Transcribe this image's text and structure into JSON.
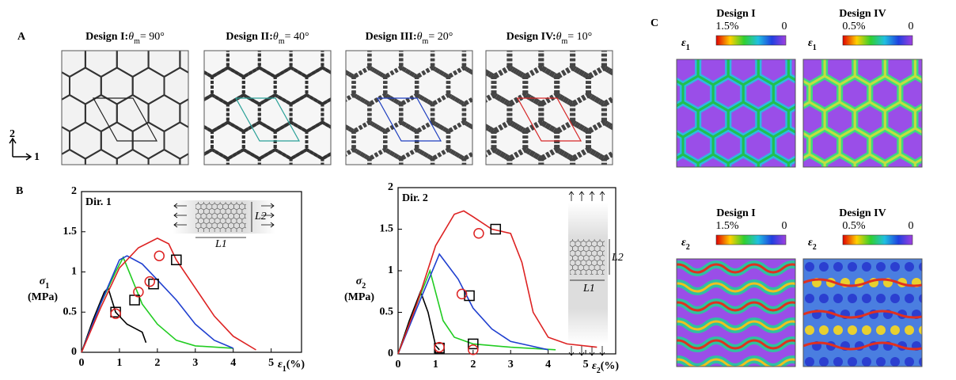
{
  "panel_labels": [
    "A",
    "B",
    "C"
  ],
  "panel_a": {
    "axis_labels": [
      "2",
      "1"
    ],
    "designs": [
      {
        "name": "Design I:",
        "symbol": "θ",
        "sub": "m",
        "equation": "= 90°",
        "cell_color": "#222222"
      },
      {
        "name": "Design II:",
        "symbol": "θ",
        "sub": "m",
        "equation": "= 40°",
        "cell_color": "#2aa198"
      },
      {
        "name": "Design III:",
        "symbol": "θ",
        "sub": "m",
        "equation": "= 20°",
        "cell_color": "#1f3fbf"
      },
      {
        "name": "Design IV:",
        "symbol": "θ",
        "sub": "m",
        "equation": "= 10°",
        "cell_color": "#d62728"
      }
    ]
  },
  "chart_data": [
    {
      "type": "line",
      "annotation": "Dir. 1",
      "x_label": {
        "symbol": "ε",
        "sub": "1",
        "unit": "(%)"
      },
      "y_label": {
        "symbol": "σ",
        "sub": "1",
        "unit": "(MPa)"
      },
      "inset_labels": {
        "l1": "L1",
        "l2": "L2"
      },
      "xlim": [
        0,
        5.8
      ],
      "ylim": [
        0,
        2
      ],
      "xticks": [
        0,
        1,
        2,
        3,
        4,
        5
      ],
      "yticks": [
        0,
        0.5,
        1,
        1.5,
        2
      ],
      "series": [
        {
          "color": "#000000",
          "x": [
            0,
            0.3,
            0.6,
            0.7,
            0.9,
            1.2,
            1.6,
            1.7
          ],
          "values": [
            0,
            0.4,
            0.75,
            0.8,
            0.5,
            0.35,
            0.25,
            0.12
          ]
        },
        {
          "color": "#22cc22",
          "x": [
            0,
            0.5,
            0.9,
            1.1,
            1.3,
            1.6,
            2,
            2.5,
            3,
            4
          ],
          "values": [
            0,
            0.6,
            1.0,
            1.18,
            0.95,
            0.6,
            0.35,
            0.15,
            0.08,
            0.05
          ]
        },
        {
          "color": "#1f3fcf",
          "x": [
            0,
            0.5,
            1,
            1.2,
            1.6,
            2,
            2.5,
            3,
            3.5,
            4
          ],
          "values": [
            0,
            0.6,
            1.15,
            1.2,
            1.1,
            0.9,
            0.65,
            0.35,
            0.15,
            0.05
          ]
        },
        {
          "color": "#dd2222",
          "x": [
            0,
            0.5,
            1,
            1.5,
            2,
            2.3,
            2.5,
            3,
            3.5,
            4,
            4.6
          ],
          "values": [
            0,
            0.55,
            1.05,
            1.3,
            1.42,
            1.35,
            1.15,
            0.8,
            0.45,
            0.2,
            0.03
          ]
        }
      ],
      "markers": [
        {
          "shape": "square",
          "color": "#000000",
          "x": 0.9,
          "y": 0.5
        },
        {
          "shape": "square",
          "color": "#000000",
          "x": 1.4,
          "y": 0.65
        },
        {
          "shape": "square",
          "color": "#000000",
          "x": 1.9,
          "y": 0.85
        },
        {
          "shape": "square",
          "color": "#000000",
          "x": 2.5,
          "y": 1.15
        },
        {
          "shape": "circle",
          "color": "#dd2222",
          "x": 0.9,
          "y": 0.48
        },
        {
          "shape": "circle",
          "color": "#dd2222",
          "x": 1.5,
          "y": 0.75
        },
        {
          "shape": "circle",
          "color": "#dd2222",
          "x": 1.8,
          "y": 0.88
        },
        {
          "shape": "circle",
          "color": "#dd2222",
          "x": 2.05,
          "y": 1.2
        }
      ]
    },
    {
      "type": "line",
      "annotation": "Dir. 2",
      "x_label": {
        "symbol": "ε",
        "sub": "2",
        "unit": "(%)"
      },
      "y_label": {
        "symbol": "σ",
        "sub": "2",
        "unit": "(MPa)"
      },
      "inset_labels": {
        "l1": "L1",
        "l2": "L2"
      },
      "xlim": [
        0,
        5.8
      ],
      "ylim": [
        0,
        2
      ],
      "xticks": [
        0,
        1,
        2,
        3,
        4,
        5
      ],
      "yticks": [
        0,
        0.5,
        1,
        1.5,
        2
      ],
      "series": [
        {
          "color": "#000000",
          "x": [
            0,
            0.3,
            0.6,
            0.8,
            1,
            1.1
          ],
          "values": [
            0,
            0.4,
            0.75,
            0.5,
            0.1,
            0.05
          ]
        },
        {
          "color": "#22cc22",
          "x": [
            0,
            0.5,
            0.85,
            1.2,
            1.5,
            2,
            3,
            4.2
          ],
          "values": [
            0,
            0.6,
            1.0,
            0.4,
            0.2,
            0.12,
            0.08,
            0.05
          ]
        },
        {
          "color": "#1f3fcf",
          "x": [
            0,
            0.5,
            1.1,
            1.6,
            2,
            2.5,
            3,
            3.5,
            4
          ],
          "values": [
            0,
            0.55,
            1.2,
            0.9,
            0.55,
            0.3,
            0.15,
            0.1,
            0.05
          ]
        },
        {
          "color": "#dd2222",
          "x": [
            0,
            0.5,
            1,
            1.5,
            1.75,
            2,
            2.5,
            3,
            3.3,
            3.6,
            4,
            4.5,
            5.3
          ],
          "values": [
            0,
            0.6,
            1.3,
            1.68,
            1.72,
            1.65,
            1.5,
            1.45,
            1.1,
            0.5,
            0.2,
            0.12,
            0.08
          ]
        }
      ],
      "markers": [
        {
          "shape": "square",
          "color": "#000000",
          "x": 1.1,
          "y": 0.07
        },
        {
          "shape": "square",
          "color": "#000000",
          "x": 1.9,
          "y": 0.7
        },
        {
          "shape": "square",
          "color": "#000000",
          "x": 2.0,
          "y": 0.12
        },
        {
          "shape": "square",
          "color": "#000000",
          "x": 2.6,
          "y": 1.5
        },
        {
          "shape": "circle",
          "color": "#dd2222",
          "x": 1.1,
          "y": 0.08
        },
        {
          "shape": "circle",
          "color": "#dd2222",
          "x": 1.7,
          "y": 0.72
        },
        {
          "shape": "circle",
          "color": "#dd2222",
          "x": 2.0,
          "y": 0.05
        },
        {
          "shape": "circle",
          "color": "#dd2222",
          "x": 2.15,
          "y": 1.45
        }
      ]
    }
  ],
  "panel_c": {
    "maps": [
      {
        "title": "Design I",
        "symbol": "ε",
        "sub": "1",
        "max_label": "1.5%",
        "min_label": "0"
      },
      {
        "title": "Design IV",
        "symbol": "ε",
        "sub": "1",
        "max_label": "0.5%",
        "min_label": "0"
      },
      {
        "title": "Design I",
        "symbol": "ε",
        "sub": "2",
        "max_label": "1.5%",
        "min_label": "0"
      },
      {
        "title": "Design IV",
        "symbol": "ε",
        "sub": "2",
        "max_label": "0.5%",
        "min_label": "0"
      }
    ]
  }
}
